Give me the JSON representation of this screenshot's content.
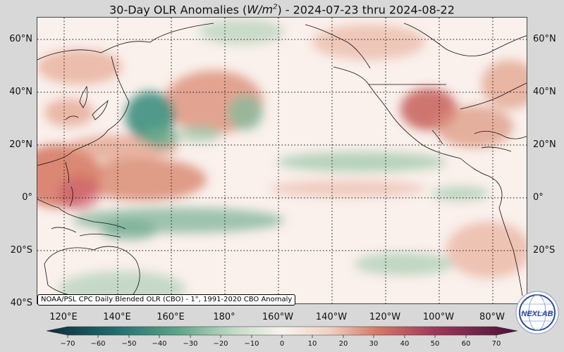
{
  "title": {
    "prefix": "30-Day OLR Anomalies (",
    "unit_base": "W/m",
    "unit_exp": "2",
    "suffix": ") - 2024-07-23 thru 2024-08-22"
  },
  "map": {
    "lat_labels": [
      "60°N",
      "40°N",
      "20°N",
      "0°",
      "20°S",
      "40°S"
    ],
    "lon_labels": [
      "120°E",
      "140°E",
      "160°E",
      "180°",
      "160°W",
      "140°W",
      "120°W",
      "100°W",
      "80°W"
    ],
    "lat_range": [
      -40,
      68
    ],
    "lon_range": [
      112,
      295
    ],
    "grid": true
  },
  "source_note": "NOAA/PSL CPC Daily Blended OLR (CBO) - 1°, 1991-2020 CBO Anomaly",
  "colorbar": {
    "ticks": [
      "−70",
      "−60",
      "−50",
      "−40",
      "−30",
      "−20",
      "−10",
      "0",
      "10",
      "20",
      "30",
      "40",
      "50",
      "60",
      "70"
    ],
    "colors": [
      "#0e2a3a",
      "#1b4a5a",
      "#1f6a6e",
      "#2f8a7a",
      "#5ea58a",
      "#94c3a4",
      "#c4dcc6",
      "#f5f5f2",
      "#f0d2c4",
      "#e4a893",
      "#d67b66",
      "#c2545a",
      "#a13a5b",
      "#7a2052",
      "#4a0f3a"
    ],
    "extend": "both"
  },
  "logo": {
    "text": "NEXLAB",
    "icon": "nexlab-globe-logo"
  },
  "colors": {
    "background": "#d8d8d8",
    "map_base": "#faf0ec",
    "wet_anomaly": "#5ea58a",
    "dry_anomaly": "#d67b66"
  }
}
